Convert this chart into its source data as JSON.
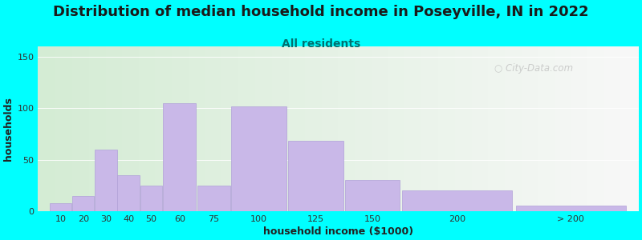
{
  "title": "Distribution of median household income in Poseyville, IN in 2022",
  "subtitle": "All residents",
  "xlabel": "household income ($1000)",
  "ylabel": "households",
  "bar_labels": [
    "10",
    "20",
    "30",
    "40",
    "50",
    "60",
    "75",
    "100",
    "125",
    "150",
    "200",
    "> 200"
  ],
  "bar_values": [
    8,
    15,
    60,
    35,
    25,
    105,
    25,
    102,
    68,
    30,
    20,
    5
  ],
  "bar_color": "#c9b8e8",
  "bar_edge_color": "#b0a0d8",
  "ylim": [
    0,
    160
  ],
  "yticks": [
    0,
    50,
    100,
    150
  ],
  "background_color": "#00ffff",
  "plot_bg_gradient_left": "#d4ecd4",
  "plot_bg_gradient_right": "#f8f8f8",
  "title_fontsize": 13,
  "subtitle_fontsize": 10,
  "subtitle_color": "#007070",
  "axis_label_fontsize": 9,
  "tick_fontsize": 8,
  "watermark_text": "  City-Data.com",
  "bar_widths": [
    10,
    10,
    10,
    10,
    10,
    15,
    15,
    25,
    25,
    25,
    50,
    50
  ],
  "bar_lefts": [
    5,
    15,
    25,
    35,
    45,
    55,
    70,
    85,
    110,
    135,
    160,
    210
  ]
}
